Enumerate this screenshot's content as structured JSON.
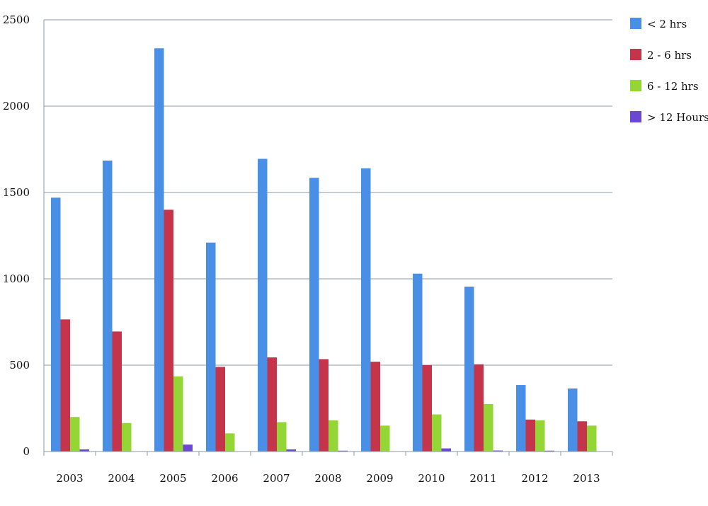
{
  "chart_data": {
    "type": "bar",
    "title": "",
    "xlabel": "",
    "ylabel": "",
    "ylim": [
      0,
      2500
    ],
    "yticks": [
      0,
      500,
      1000,
      1500,
      2000,
      2500
    ],
    "grid": true,
    "legend_position": "right",
    "categories": [
      "2003",
      "2004",
      "2005",
      "2006",
      "2007",
      "2008",
      "2009",
      "2010",
      "2011",
      "2012",
      "2013"
    ],
    "series": [
      {
        "name": "< 2 hrs",
        "color": "#4a8fe6",
        "values": [
          1470,
          1685,
          2335,
          1210,
          1695,
          1585,
          1640,
          1030,
          955,
          385,
          365
        ]
      },
      {
        "name": "2 - 6 hrs",
        "color": "#c4344a",
        "values": [
          765,
          695,
          1400,
          490,
          545,
          535,
          520,
          500,
          505,
          185,
          175
        ]
      },
      {
        "name": "6 - 12 hrs",
        "color": "#94d635",
        "values": [
          200,
          165,
          435,
          105,
          170,
          180,
          150,
          215,
          275,
          180,
          150
        ]
      },
      {
        "name": "> 12 Hours",
        "color": "#6a48d0",
        "values": [
          12,
          0,
          40,
          0,
          12,
          5,
          0,
          18,
          6,
          5,
          0
        ]
      }
    ]
  }
}
